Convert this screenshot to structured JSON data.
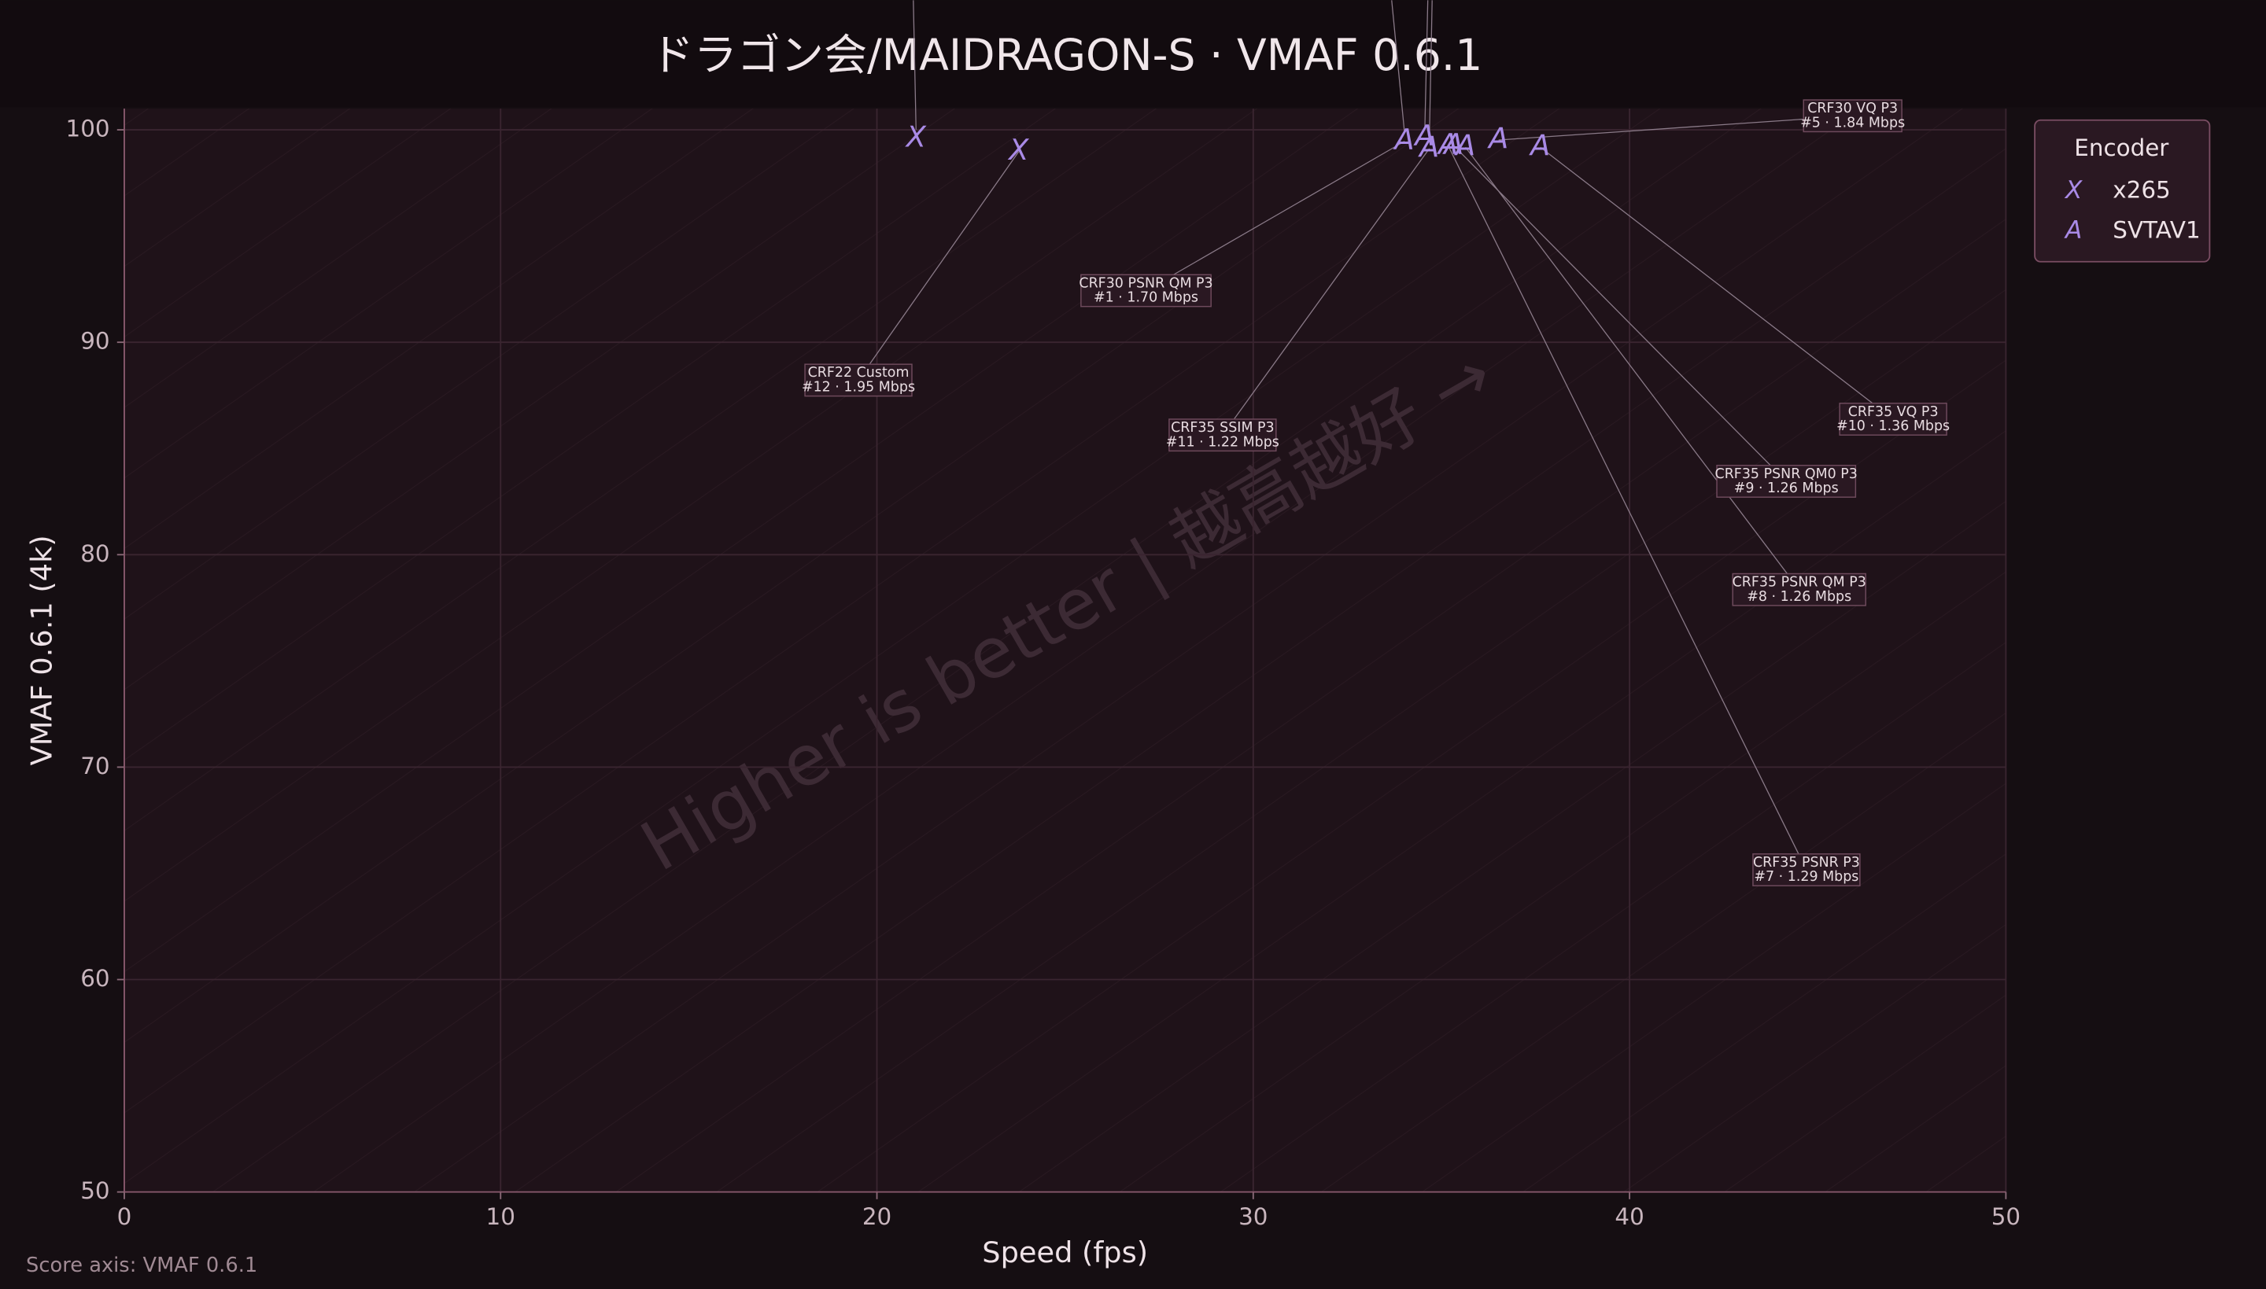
{
  "chart_data": {
    "type": "scatter",
    "title": "ドラゴン会/MAIDRAGON-S · VMAF 0.6.1",
    "x_label": "Speed (fps)",
    "y_label": "VMAF 0.6.1 (4k)",
    "note": "Score axis: VMAF 0.6.1",
    "watermark": "Higher is better  |  越高越好  →",
    "legend_title": "Encoder",
    "grid": true,
    "xlim": [
      0,
      50
    ],
    "xticks": [
      0,
      10,
      20,
      30,
      40,
      50
    ],
    "ylim": [
      50,
      101
    ],
    "yticks": [
      50,
      60,
      70,
      80,
      90,
      100
    ],
    "series": [
      {
        "name": "x265",
        "marker": "X",
        "color": "#a98ae6",
        "x": [
          21.04,
          23.77
        ],
        "values": [
          99.6,
          98.98
        ],
        "labels": [
          null,
          [
            "CRF22 Custom",
            "#12 · 1.95 Mbps"
          ]
        ]
      },
      {
        "name": "SVTAV1",
        "marker": "A",
        "color": "#a98ae6",
        "x": [
          34.02,
          34.56,
          34.68,
          35.18,
          35.33,
          35.64,
          36.52,
          37.63
        ],
        "values": [
          99.46,
          99.66,
          99.12,
          99.25,
          99.25,
          99.18,
          99.52,
          99.18
        ],
        "labels": [
          [
            "CRF30 PSNR QM P3",
            "#1 · 1.70 Mbps"
          ],
          null,
          [
            "CRF35 SSIM P3",
            "#11 · 1.22 Mbps"
          ],
          [
            "CRF35 PSNR P3",
            "#7 · 1.29 Mbps"
          ],
          [
            "CRF35 PSNR QM0 P3",
            "#9 · 1.26 Mbps"
          ],
          [
            "CRF35 PSNR QM P3",
            "#8 · 1.26 Mbps"
          ],
          [
            "CRF30 VQ P3",
            "#5 · 1.84 Mbps"
          ],
          [
            "CRF35 VQ P3",
            "#10 · 1.36 Mbps"
          ]
        ]
      }
    ]
  }
}
